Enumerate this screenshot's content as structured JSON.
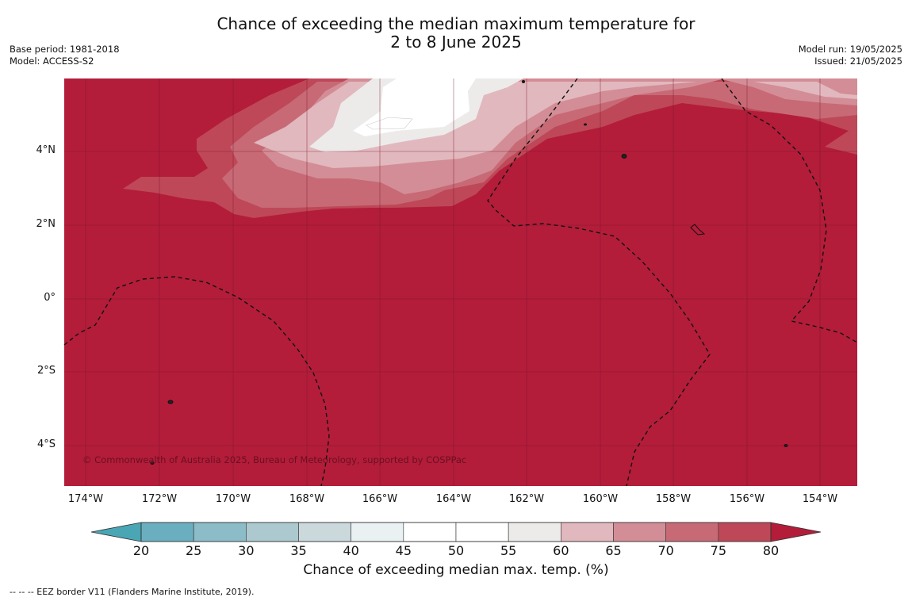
{
  "title": {
    "line1": "Chance of exceeding the median maximum temperature for",
    "line2": "2 to 8 June 2025"
  },
  "meta": {
    "base_period": "Base period: 1981-2018",
    "model": "Model: ACCESS-S2",
    "model_run": "Model run: 19/05/2025",
    "issued": "Issued: 21/05/2025"
  },
  "map": {
    "background_color": "#b31d3a",
    "lat_labels": [
      "4°N",
      "2°N",
      "0°",
      "2°S",
      "4°S"
    ],
    "lon_labels": [
      "174°W",
      "172°W",
      "170°W",
      "168°W",
      "166°W",
      "164°W",
      "162°W",
      "160°W",
      "158°W",
      "156°W",
      "154°W"
    ],
    "copyright": "© Commonwealth of Australia 2025, Bureau of Meteorology, supported by COSPPac"
  },
  "colorbar": {
    "title": "Chance of exceeding median max. temp. (%)",
    "ticks": [
      "20",
      "25",
      "30",
      "35",
      "40",
      "45",
      "50",
      "55",
      "60",
      "65",
      "70",
      "75",
      "80"
    ],
    "colors": [
      "#6aafbf",
      "#8cbcc8",
      "#abc9ce",
      "#cbd9dc",
      "#eaf1f2",
      "#ffffff",
      "#ffffff",
      "#ecebea",
      "#e1b8be",
      "#d38d96",
      "#c76a76",
      "#be4857"
    ],
    "low_extend_color": "#4aa6b4",
    "high_extend_color": "#b31d3a"
  },
  "footer": {
    "legend_text": "--  --  -- EEZ border V11 (Flanders Marine Institute, 2019)."
  }
}
